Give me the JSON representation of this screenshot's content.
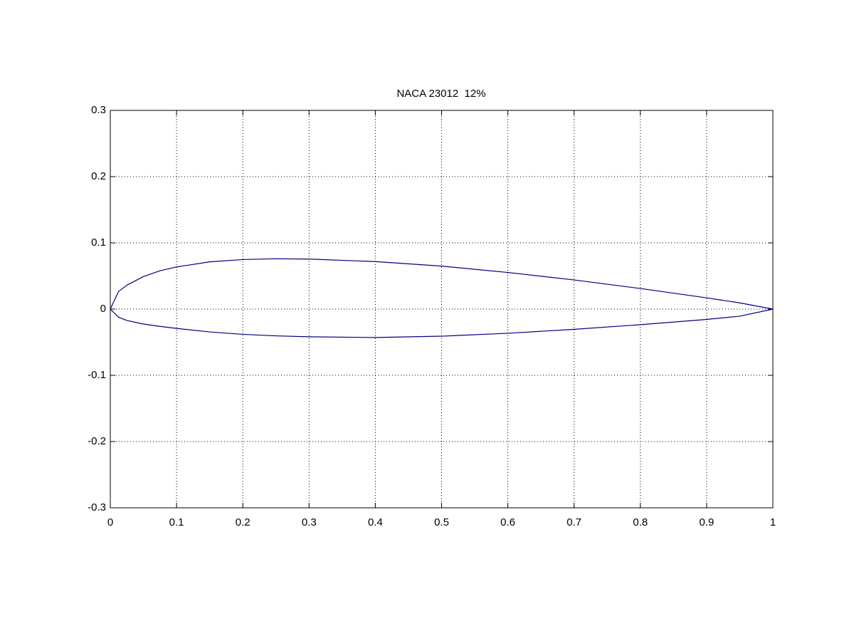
{
  "chart_data": {
    "type": "line",
    "title": "NACA 23012  12%",
    "series": [
      {
        "name": "upper",
        "color": "#000080",
        "x": [
          0,
          0.0125,
          0.025,
          0.05,
          0.075,
          0.1,
          0.15,
          0.2,
          0.25,
          0.3,
          0.4,
          0.5,
          0.6,
          0.7,
          0.8,
          0.9,
          0.95,
          1
        ],
        "values": [
          0,
          0.0267,
          0.0361,
          0.0491,
          0.0579,
          0.0636,
          0.0714,
          0.0748,
          0.076,
          0.0755,
          0.0718,
          0.0649,
          0.0553,
          0.044,
          0.0311,
          0.017,
          0.0094,
          0
        ]
      },
      {
        "name": "lower",
        "color": "#000080",
        "x": [
          0,
          0.0125,
          0.025,
          0.05,
          0.075,
          0.1,
          0.15,
          0.2,
          0.25,
          0.3,
          0.4,
          0.5,
          0.6,
          0.7,
          0.8,
          0.9,
          0.95,
          1
        ],
        "values": [
          0,
          -0.0123,
          -0.0171,
          -0.0226,
          -0.0261,
          -0.0292,
          -0.0345,
          -0.0381,
          -0.0404,
          -0.0418,
          -0.0429,
          -0.0409,
          -0.0365,
          -0.0305,
          -0.0235,
          -0.0156,
          -0.0107,
          0
        ]
      }
    ],
    "xlim": [
      0,
      1
    ],
    "xticks": [
      0,
      0.1,
      0.2,
      0.3,
      0.4,
      0.5,
      0.6,
      0.7,
      0.8,
      0.9,
      1
    ],
    "ylim": [
      -0.3,
      0.3
    ],
    "yticks": [
      -0.3,
      -0.2,
      -0.1,
      0,
      0.1,
      0.2,
      0.3
    ],
    "grid": true,
    "legend": false
  }
}
